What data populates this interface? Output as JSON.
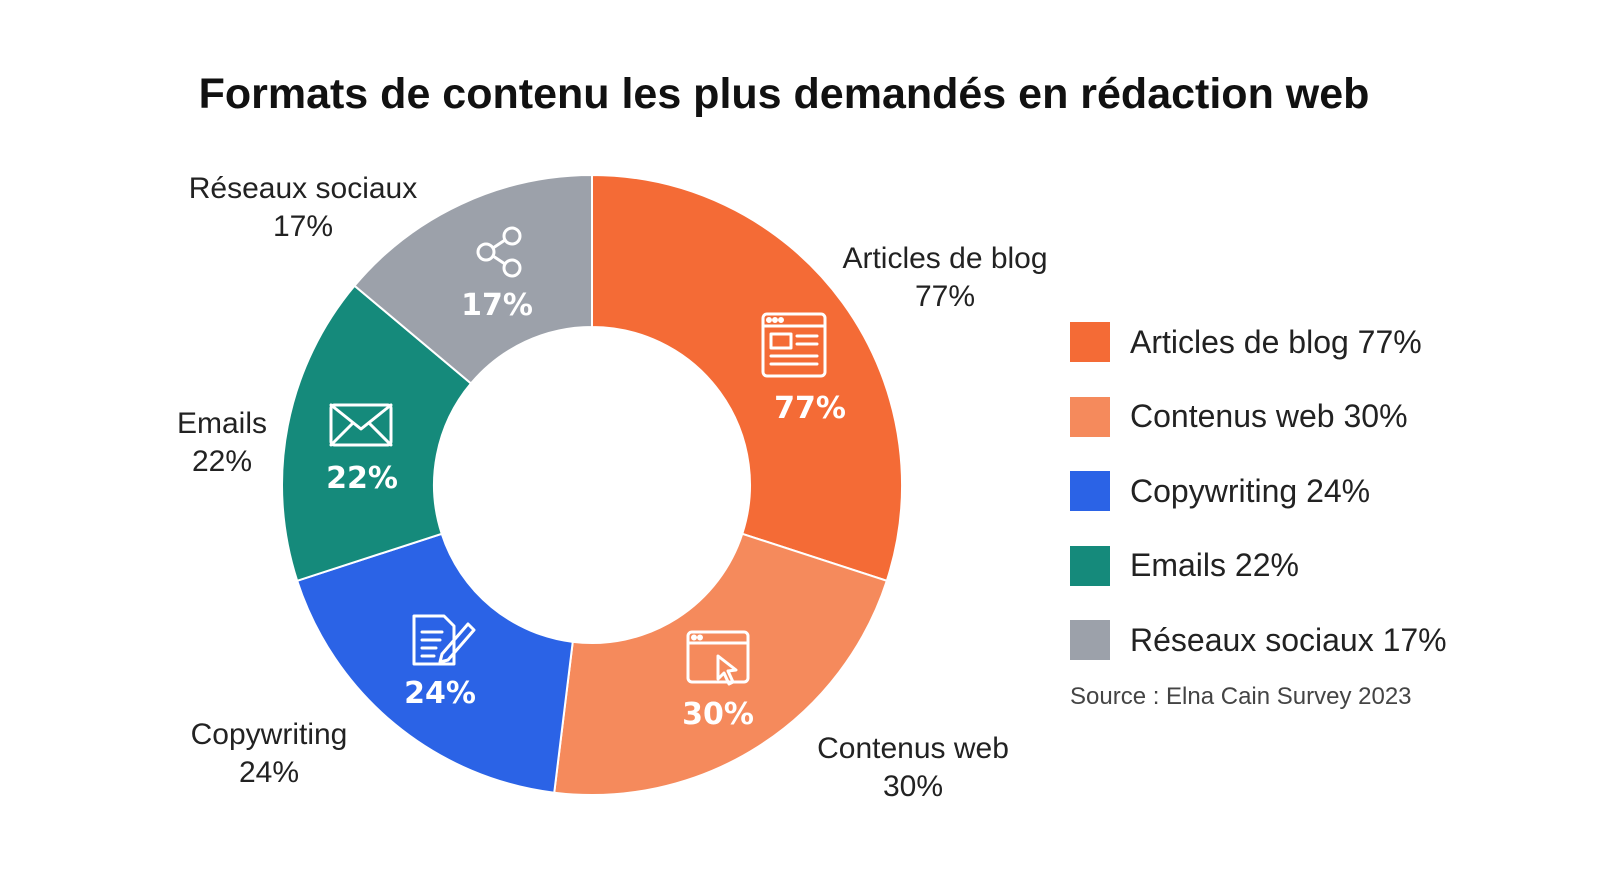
{
  "chart_data": {
    "type": "pie",
    "variant": "donut",
    "title": "Formats de contenu les plus demandés en rédaction web",
    "categories": [
      "Articles de blog",
      "Contenus web",
      "Copywriting",
      "Emails",
      "Réseaux sociaux"
    ],
    "values": [
      77,
      30,
      24,
      22,
      17
    ],
    "unit": "%",
    "colors": [
      "#F46B36",
      "#F58A5C",
      "#2B63E6",
      "#158A7B",
      "#9CA1AA"
    ],
    "icons": [
      "browser-article-icon",
      "browser-cursor-icon",
      "document-pen-icon",
      "envelope-icon",
      "share-icon"
    ],
    "value_labels": [
      "77%",
      "30%",
      "24%",
      "22%",
      "17%"
    ],
    "legend_labels": [
      "Articles de blog 77%",
      "Contenus web 30%",
      "Copywriting 24%",
      "Emails 22%",
      "Réseaux sociaux 17%"
    ],
    "legend_position": "right",
    "source": "Source : Elna Cain Survey 2023"
  }
}
